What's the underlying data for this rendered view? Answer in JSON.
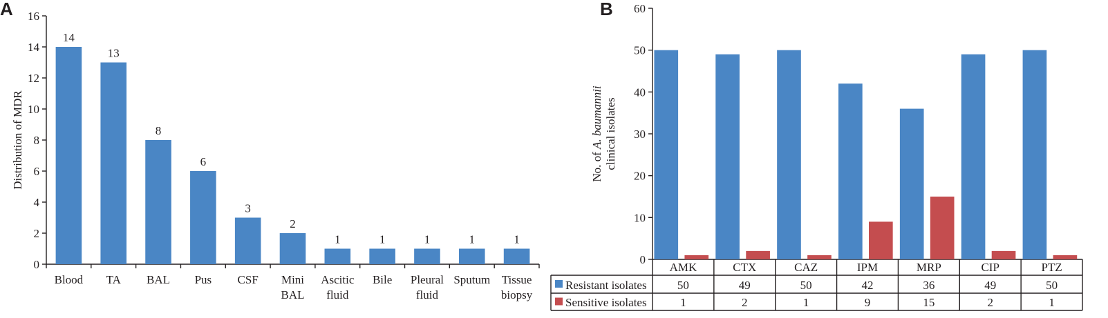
{
  "panels": {
    "a_label": "A",
    "b_label": "B"
  },
  "chart_data": [
    {
      "type": "bar",
      "panel": "A",
      "ylabel": "Distribution of MDR",
      "ylim": [
        0,
        16
      ],
      "yticks": [
        0,
        2,
        4,
        6,
        8,
        10,
        12,
        14,
        16
      ],
      "categories": [
        [
          "Blood"
        ],
        [
          "TA"
        ],
        [
          "BAL"
        ],
        [
          "Pus"
        ],
        [
          "CSF"
        ],
        [
          "Mini",
          "BAL"
        ],
        [
          "Ascitic",
          "fluid"
        ],
        [
          "Bile"
        ],
        [
          "Pleural",
          "fluid"
        ],
        [
          "Sputum"
        ],
        [
          "Tissue",
          "biopsy"
        ]
      ],
      "values": [
        14,
        13,
        8,
        6,
        3,
        2,
        1,
        1,
        1,
        1,
        1
      ],
      "data_labels": true,
      "color": "#4a86c5"
    },
    {
      "type": "bar",
      "panel": "B",
      "ylabel_prefix": "No. of ",
      "ylabel_italic": "A. baumannii",
      "ylabel_line2": "clinical isolates",
      "ylim": [
        0,
        60
      ],
      "yticks": [
        0,
        10,
        20,
        30,
        40,
        50,
        60
      ],
      "categories": [
        "AMK",
        "CTX",
        "CAZ",
        "IPM",
        "MRP",
        "CIP",
        "PTZ"
      ],
      "series": [
        {
          "name": "Resistant isolates",
          "values": [
            50,
            49,
            50,
            42,
            36,
            49,
            50
          ],
          "color": "#4a86c5"
        },
        {
          "name": "Sensitive isolates",
          "values": [
            1,
            2,
            1,
            9,
            15,
            2,
            1
          ],
          "color": "#c44d4f"
        }
      ],
      "legend": "data-table below chart"
    }
  ]
}
